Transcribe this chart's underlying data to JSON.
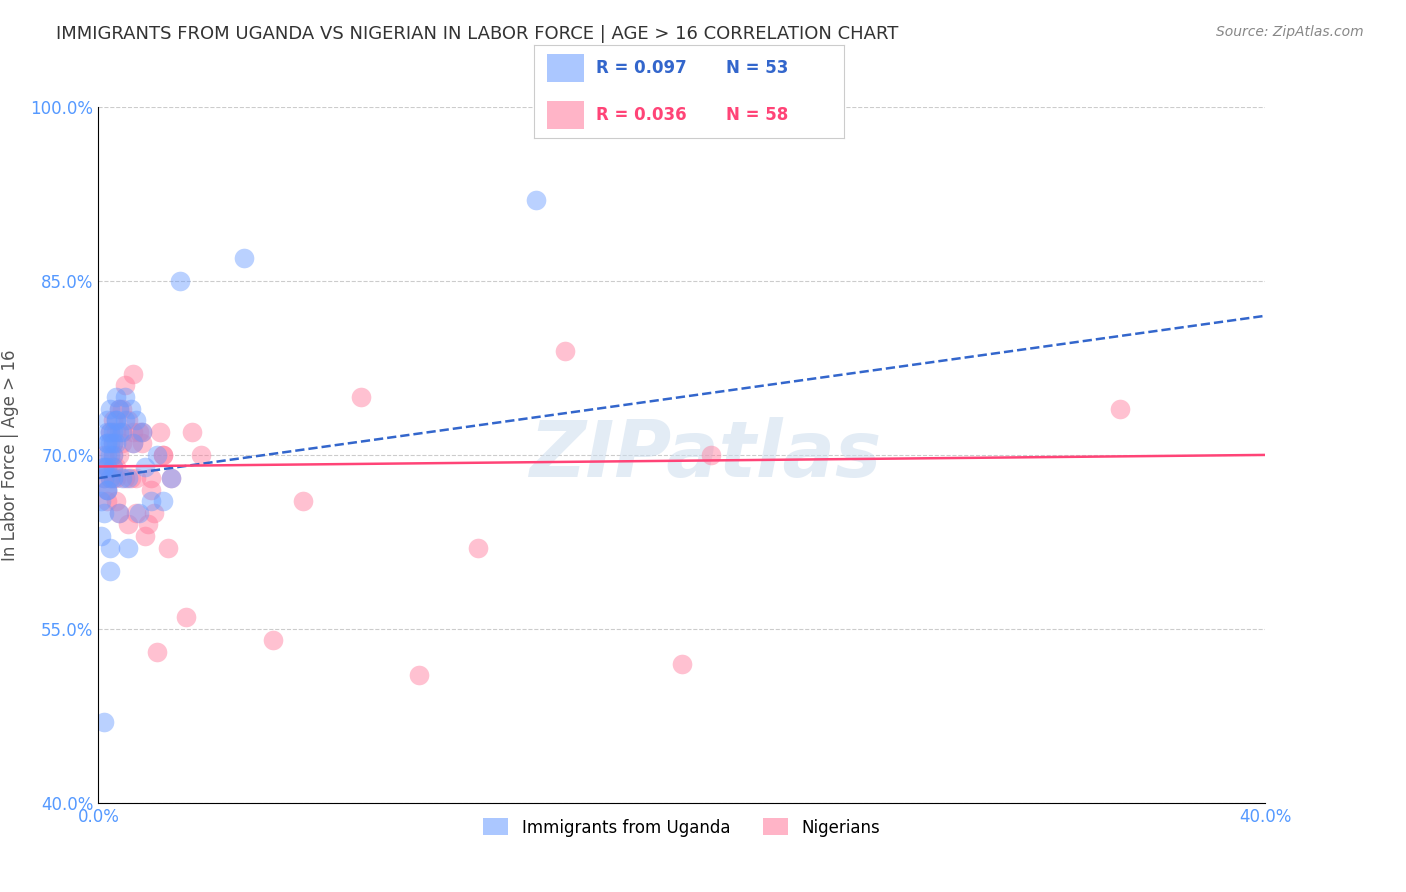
{
  "title": "IMMIGRANTS FROM UGANDA VS NIGERIAN IN LABOR FORCE | AGE > 16 CORRELATION CHART",
  "source": "Source: ZipAtlas.com",
  "ylabel": "In Labor Force | Age > 16",
  "xlim": [
    0.0,
    0.4
  ],
  "ylim": [
    0.4,
    1.0
  ],
  "xticks": [
    0.0,
    0.05,
    0.1,
    0.15,
    0.2,
    0.25,
    0.3,
    0.35,
    0.4
  ],
  "xticklabels": [
    "0.0%",
    "",
    "",
    "",
    "",
    "",
    "",
    "",
    "40.0%"
  ],
  "yticks": [
    0.4,
    0.55,
    0.7,
    0.85,
    1.0
  ],
  "yticklabels": [
    "40.0%",
    "55.0%",
    "70.0%",
    "85.0%",
    "100.0%"
  ],
  "grid_color": "#cccccc",
  "background_color": "#ffffff",
  "title_color": "#333333",
  "axis_color": "#5599ff",
  "legend_r1": "R = 0.097",
  "legend_n1": "N = 53",
  "legend_r2": "R = 0.036",
  "legend_n2": "N = 58",
  "legend_label1": "Immigrants from Uganda",
  "legend_label2": "Nigerians",
  "uganda_color": "#6699ff",
  "nigeria_color": "#ff7799",
  "line1_color": "#3366cc",
  "line2_color": "#ff4477",
  "watermark": "ZIPatlas",
  "line1_y0": 0.68,
  "line1_y1": 0.82,
  "line2_y0": 0.69,
  "line2_y1": 0.7,
  "uganda_x": [
    0.001,
    0.001,
    0.002,
    0.002,
    0.002,
    0.002,
    0.003,
    0.003,
    0.003,
    0.003,
    0.003,
    0.003,
    0.004,
    0.004,
    0.004,
    0.004,
    0.004,
    0.005,
    0.005,
    0.005,
    0.005,
    0.005,
    0.006,
    0.006,
    0.006,
    0.006,
    0.007,
    0.007,
    0.007,
    0.008,
    0.008,
    0.009,
    0.009,
    0.01,
    0.01,
    0.011,
    0.012,
    0.013,
    0.014,
    0.015,
    0.016,
    0.018,
    0.02,
    0.022,
    0.025,
    0.028,
    0.05,
    0.003,
    0.003,
    0.004,
    0.004,
    0.15,
    0.002
  ],
  "uganda_y": [
    0.63,
    0.66,
    0.69,
    0.69,
    0.65,
    0.68,
    0.72,
    0.71,
    0.7,
    0.69,
    0.67,
    0.73,
    0.71,
    0.7,
    0.72,
    0.68,
    0.74,
    0.71,
    0.69,
    0.68,
    0.72,
    0.7,
    0.73,
    0.71,
    0.75,
    0.73,
    0.74,
    0.72,
    0.65,
    0.72,
    0.68,
    0.73,
    0.75,
    0.62,
    0.68,
    0.74,
    0.71,
    0.73,
    0.65,
    0.72,
    0.69,
    0.66,
    0.7,
    0.66,
    0.68,
    0.85,
    0.87,
    0.67,
    0.71,
    0.62,
    0.6,
    0.92,
    0.47
  ],
  "nigeria_x": [
    0.002,
    0.002,
    0.003,
    0.003,
    0.003,
    0.004,
    0.004,
    0.005,
    0.005,
    0.005,
    0.005,
    0.006,
    0.006,
    0.006,
    0.007,
    0.007,
    0.007,
    0.008,
    0.008,
    0.009,
    0.009,
    0.01,
    0.011,
    0.012,
    0.012,
    0.013,
    0.013,
    0.014,
    0.015,
    0.016,
    0.017,
    0.018,
    0.019,
    0.02,
    0.021,
    0.022,
    0.024,
    0.025,
    0.03,
    0.032,
    0.035,
    0.06,
    0.07,
    0.09,
    0.11,
    0.13,
    0.16,
    0.2,
    0.21,
    0.005,
    0.006,
    0.008,
    0.01,
    0.012,
    0.015,
    0.018,
    0.022,
    0.35
  ],
  "nigeria_y": [
    0.68,
    0.7,
    0.66,
    0.69,
    0.67,
    0.72,
    0.68,
    0.71,
    0.69,
    0.73,
    0.7,
    0.68,
    0.72,
    0.69,
    0.65,
    0.74,
    0.7,
    0.72,
    0.71,
    0.68,
    0.76,
    0.73,
    0.68,
    0.77,
    0.72,
    0.68,
    0.65,
    0.72,
    0.71,
    0.63,
    0.64,
    0.68,
    0.65,
    0.53,
    0.72,
    0.7,
    0.62,
    0.68,
    0.56,
    0.72,
    0.7,
    0.54,
    0.66,
    0.75,
    0.51,
    0.62,
    0.79,
    0.52,
    0.7,
    0.68,
    0.66,
    0.74,
    0.64,
    0.71,
    0.72,
    0.67,
    0.7,
    0.74
  ]
}
